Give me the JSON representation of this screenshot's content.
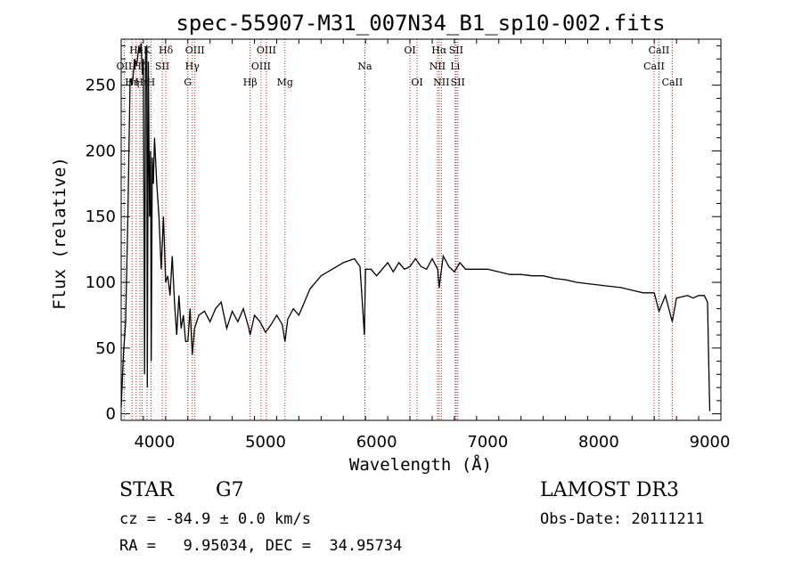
{
  "chart_data": {
    "type": "line",
    "title": "spec-55907-M31_007N34_B1_sp10-002.fits",
    "xlabel": "Wavelength (Å)",
    "ylabel": "Flux (relative)",
    "xlim": [
      3700,
      9100
    ],
    "ylim": [
      -5,
      285
    ],
    "xticks": [
      4000,
      5000,
      6000,
      7000,
      8000,
      9000
    ],
    "yticks": [
      0,
      50,
      100,
      150,
      200,
      250
    ],
    "series": [
      {
        "x": [
          3700,
          3720,
          3740,
          3760,
          3780,
          3800,
          3820,
          3840,
          3860,
          3870,
          3880,
          3890,
          3900,
          3910,
          3920,
          3930,
          3935,
          3945,
          3955,
          3965,
          3970,
          3980,
          3990,
          4000,
          4020,
          4040,
          4060,
          4080,
          4100,
          4120,
          4140,
          4160,
          4180,
          4200,
          4220,
          4240,
          4260,
          4280,
          4300,
          4320,
          4340,
          4360,
          4380,
          4400,
          4450,
          4500,
          4550,
          4600,
          4650,
          4700,
          4750,
          4800,
          4850,
          4861,
          4900,
          4950,
          5000,
          5050,
          5100,
          5150,
          5175,
          5200,
          5250,
          5300,
          5400,
          5500,
          5600,
          5700,
          5800,
          5850,
          5890,
          5900,
          5950,
          6000,
          6050,
          6100,
          6150,
          6200,
          6250,
          6300,
          6350,
          6400,
          6450,
          6500,
          6550,
          6563,
          6600,
          6650,
          6700,
          6750,
          6800,
          6900,
          7000,
          7100,
          7200,
          7300,
          7400,
          7500,
          7600,
          7700,
          7800,
          7900,
          8000,
          8100,
          8200,
          8300,
          8400,
          8500,
          8542,
          8600,
          8662,
          8700,
          8800,
          8850,
          8900,
          8950,
          8980,
          8990,
          9000
        ],
        "y": [
          5,
          45,
          70,
          150,
          255,
          250,
          270,
          265,
          280,
          275,
          282,
          258,
          270,
          30,
          275,
          280,
          20,
          268,
          150,
          200,
          40,
          195,
          175,
          210,
          175,
          150,
          110,
          150,
          100,
          105,
          90,
          120,
          85,
          60,
          90,
          65,
          75,
          55,
          55,
          80,
          45,
          65,
          70,
          75,
          78,
          70,
          80,
          85,
          65,
          78,
          70,
          80,
          65,
          60,
          75,
          70,
          62,
          68,
          75,
          68,
          55,
          72,
          80,
          75,
          95,
          105,
          110,
          115,
          118,
          112,
          60,
          110,
          110,
          105,
          110,
          115,
          108,
          115,
          110,
          112,
          118,
          112,
          110,
          118,
          110,
          96,
          120,
          112,
          108,
          115,
          110,
          110,
          110,
          108,
          106,
          106,
          105,
          105,
          103,
          102,
          100,
          99,
          98,
          97,
          96,
          94,
          92,
          92,
          78,
          90,
          70,
          88,
          90,
          88,
          90,
          90,
          85,
          40,
          2
        ]
      }
    ],
    "lines": [
      {
        "w": 3727,
        "label": "OII",
        "row": 1
      },
      {
        "w": 3798,
        "label": "Hη",
        "row": 2
      },
      {
        "w": 3835,
        "label": "Hε",
        "row": 0
      },
      {
        "w": 3869,
        "label": "Hζ",
        "row": 1
      },
      {
        "w": 3889,
        "label": "Hη",
        "row": 2
      },
      {
        "w": 3933,
        "label": "K",
        "row": 0
      },
      {
        "w": 3968,
        "label": "H",
        "row": 2
      },
      {
        "w": 4070,
        "label": "SII",
        "row": 1
      },
      {
        "w": 4102,
        "label": "Hδ",
        "row": 0
      },
      {
        "w": 4300,
        "label": "G",
        "row": 2
      },
      {
        "w": 4340,
        "label": "Hγ",
        "row": 1
      },
      {
        "w": 4364,
        "label": "OIII",
        "row": 0
      },
      {
        "w": 4861,
        "label": "Hβ",
        "row": 2
      },
      {
        "w": 4959,
        "label": "OIII",
        "row": 1
      },
      {
        "w": 5007,
        "label": "OIII",
        "row": 0
      },
      {
        "w": 5175,
        "label": "Mg",
        "row": 2
      },
      {
        "w": 5894,
        "label": "Na",
        "row": 1
      },
      {
        "w": 6300,
        "label": "OI",
        "row": 0
      },
      {
        "w": 6364,
        "label": "OI",
        "row": 2
      },
      {
        "w": 6548,
        "label": "NII",
        "row": 1
      },
      {
        "w": 6563,
        "label": "Hα",
        "row": 0
      },
      {
        "w": 6583,
        "label": "NII",
        "row": 2
      },
      {
        "w": 6707,
        "label": "Li",
        "row": 1
      },
      {
        "w": 6716,
        "label": "SII",
        "row": 0
      },
      {
        "w": 6731,
        "label": "SII",
        "row": 2
      },
      {
        "w": 8498,
        "label": "CaII",
        "row": 1
      },
      {
        "w": 8542,
        "label": "CaII",
        "row": 0
      },
      {
        "w": 8662,
        "label": "CaII",
        "row": 2
      }
    ],
    "colors": {
      "spectrum": "#000000",
      "marker": "#b22222"
    }
  },
  "info": {
    "class_label": "STAR",
    "subclass": "G7",
    "survey": "LAMOST DR3",
    "cz": "cz = -84.9 ± 0.0 km/s",
    "obs_date": "Obs-Date: 20111211",
    "coords": "RA =   9.95034, DEC =  34.95734"
  }
}
